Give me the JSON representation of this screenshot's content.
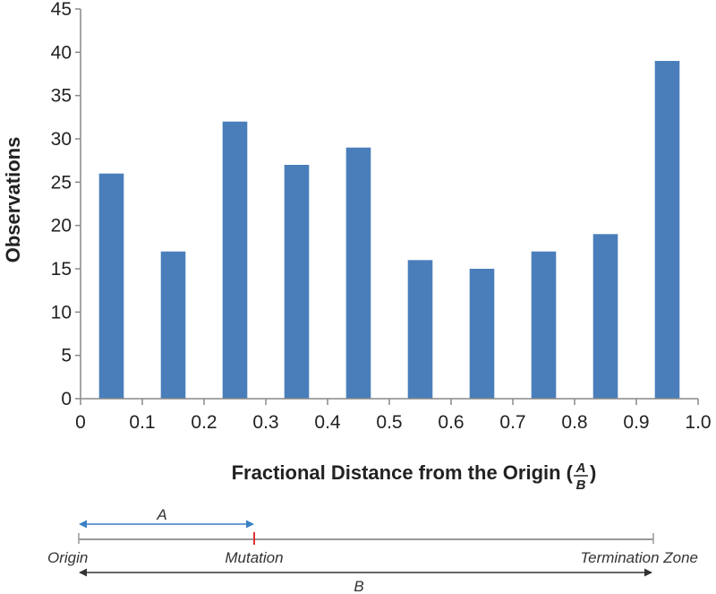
{
  "chart_data": {
    "type": "bar",
    "categories": [
      "0.0-0.1",
      "0.1-0.2",
      "0.2-0.3",
      "0.3-0.4",
      "0.4-0.5",
      "0.5-0.6",
      "0.6-0.7",
      "0.7-0.8",
      "0.8-0.9",
      "0.9-1.0"
    ],
    "bin_centers": [
      0.05,
      0.15,
      0.25,
      0.35,
      0.45,
      0.55,
      0.65,
      0.75,
      0.85,
      0.95
    ],
    "values": [
      26,
      17,
      32,
      27,
      29,
      16,
      15,
      17,
      19,
      39
    ],
    "xlabel": "Fractional Distance from the Origin (",
    "xlabel_fraction": {
      "numerator": "A",
      "denominator": "B"
    },
    "xlabel_close": ")",
    "ylabel": "Observations",
    "xlim": [
      0,
      1.0
    ],
    "ylim": [
      0,
      45
    ],
    "x_ticks": [
      "0",
      "0.1",
      "0.2",
      "0.3",
      "0.4",
      "0.5",
      "0.6",
      "0.7",
      "0.8",
      "0.9",
      "1.0"
    ],
    "y_ticks": [
      "0",
      "5",
      "10",
      "15",
      "20",
      "25",
      "30",
      "35",
      "40",
      "45"
    ],
    "bar_color": "#4a7ebb",
    "grid": false
  },
  "diagram": {
    "label_a": "A",
    "label_b": "B",
    "origin_label": "Origin",
    "mutation_label": "Mutation",
    "termination_label": "Termination Zone",
    "mutation_position": 0.3,
    "a_arrow_color": "#3b7fc4",
    "mutation_color": "#e03030",
    "line_color": "#999999",
    "b_arrow_color": "#333333"
  }
}
